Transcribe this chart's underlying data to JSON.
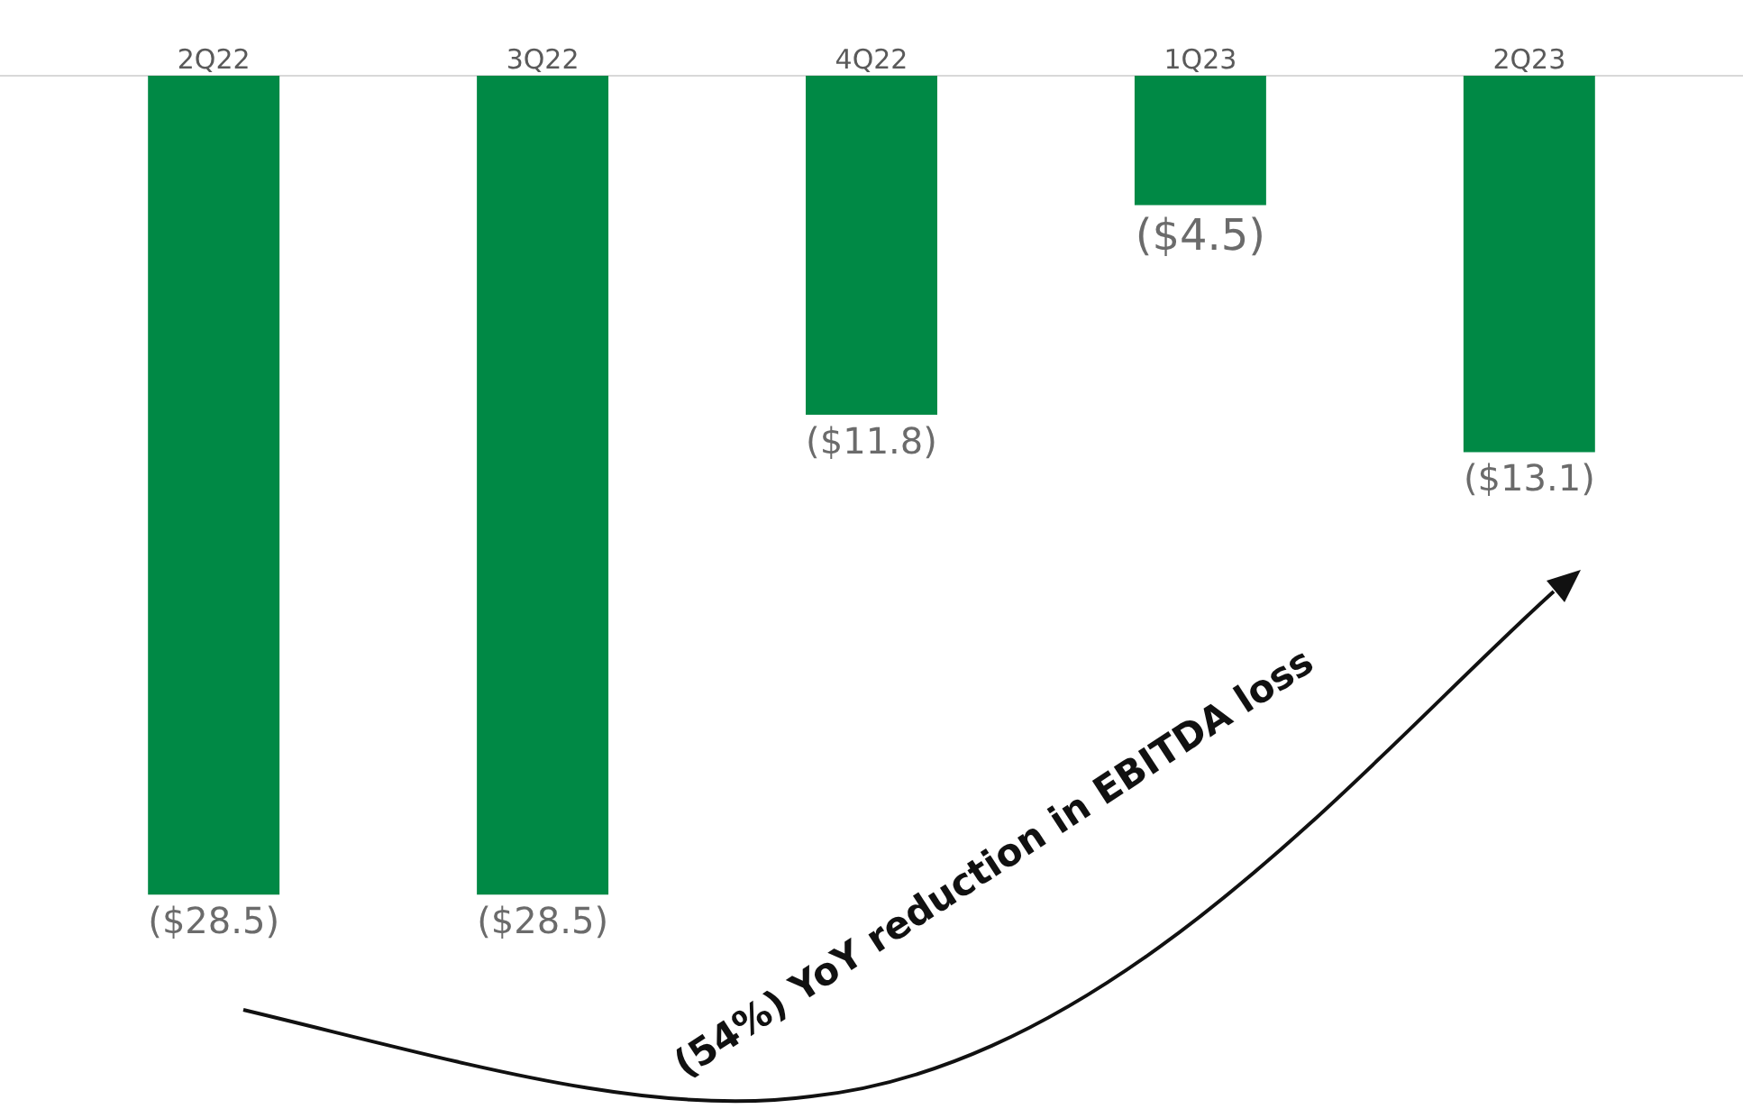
{
  "chart_data": {
    "type": "bar",
    "categories": [
      "2Q22",
      "3Q22",
      "4Q22",
      "1Q23",
      "2Q23"
    ],
    "values": [
      -28.5,
      -28.5,
      -11.8,
      -4.5,
      -13.1
    ],
    "value_labels": [
      "($28.5)",
      "($28.5)",
      "($11.8)",
      "($4.5)",
      "($13.1)"
    ],
    "color": "#008945",
    "grid": false,
    "legend": false,
    "annotations": [
      "(54%) YoY reduction in EBITDA loss"
    ]
  }
}
